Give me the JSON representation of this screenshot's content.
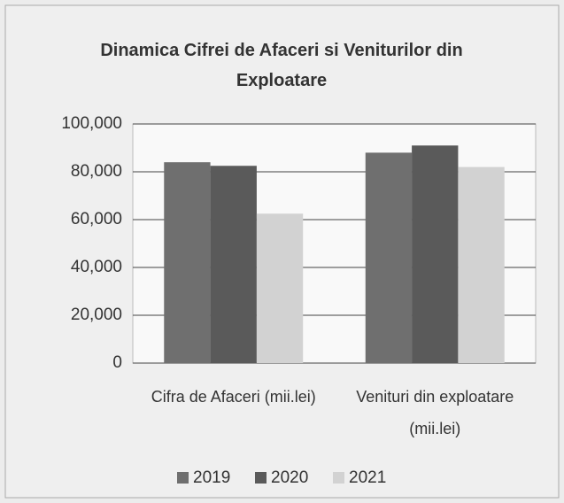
{
  "chart_data": {
    "type": "bar",
    "title": "Dinamica Cifrei de Afaceri si Veniturilor din Exploatare",
    "categories": [
      "Cifra de Afaceri (mii.lei)",
      "Venituri din exploatare (mii.lei)"
    ],
    "series": [
      {
        "name": "2019",
        "color": "#6f6f6f",
        "values": [
          84000,
          88000
        ]
      },
      {
        "name": "2020",
        "color": "#5a5a5a",
        "values": [
          82500,
          91000
        ]
      },
      {
        "name": "2021",
        "color": "#d2d2d2",
        "values": [
          62500,
          82000
        ]
      }
    ],
    "ylim": [
      0,
      100000
    ],
    "yticks": [
      0,
      {
        "value": 20000,
        "label": "20,000"
      },
      {
        "value": 40000,
        "label": "40,000"
      },
      {
        "value": 60000,
        "label": "60,000"
      },
      {
        "value": 80000,
        "label": "80,000"
      },
      {
        "value": 100000,
        "label": "100,000"
      }
    ],
    "grid": true,
    "legend": "bottom"
  }
}
